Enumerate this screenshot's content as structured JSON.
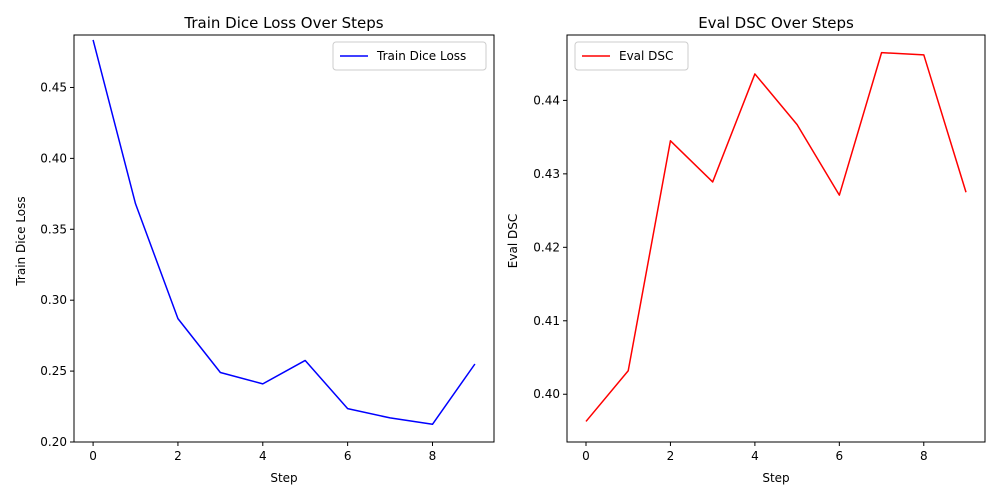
{
  "chart_data": [
    {
      "type": "line",
      "title": "Train Dice Loss Over Steps",
      "xlabel": "Step",
      "ylabel": "Train Dice Loss",
      "xlim": [
        -0.45,
        9.45
      ],
      "ylim": [
        0.2,
        0.487
      ],
      "xticks": [
        0,
        2,
        4,
        6,
        8
      ],
      "yticks": [
        0.2,
        0.25,
        0.3,
        0.35,
        0.4,
        0.45
      ],
      "ytick_decimals": 2,
      "grid": false,
      "legend_position": "top-right",
      "x": [
        0,
        1,
        2,
        3,
        4,
        5,
        6,
        7,
        8,
        9
      ],
      "series": [
        {
          "name": "Train Dice Loss",
          "color": "#0000ff",
          "values": [
            0.4835,
            0.368,
            0.287,
            0.249,
            0.241,
            0.2575,
            0.2235,
            0.217,
            0.2125,
            0.255
          ]
        }
      ]
    },
    {
      "type": "line",
      "title": "Eval DSC Over Steps",
      "xlabel": "Step",
      "ylabel": "Eval DSC",
      "xlim": [
        -0.45,
        9.45
      ],
      "ylim": [
        0.3935,
        0.4489
      ],
      "xticks": [
        0,
        2,
        4,
        6,
        8
      ],
      "yticks": [
        0.4,
        0.41,
        0.42,
        0.43,
        0.44
      ],
      "ytick_decimals": 2,
      "grid": false,
      "legend_position": "top-left",
      "x": [
        0,
        1,
        2,
        3,
        4,
        5,
        6,
        7,
        8,
        9
      ],
      "series": [
        {
          "name": "Eval DSC",
          "color": "#ff0000",
          "values": [
            0.3963,
            0.4032,
            0.4345,
            0.4289,
            0.4436,
            0.4367,
            0.4271,
            0.4465,
            0.4462,
            0.4275
          ]
        }
      ]
    }
  ]
}
